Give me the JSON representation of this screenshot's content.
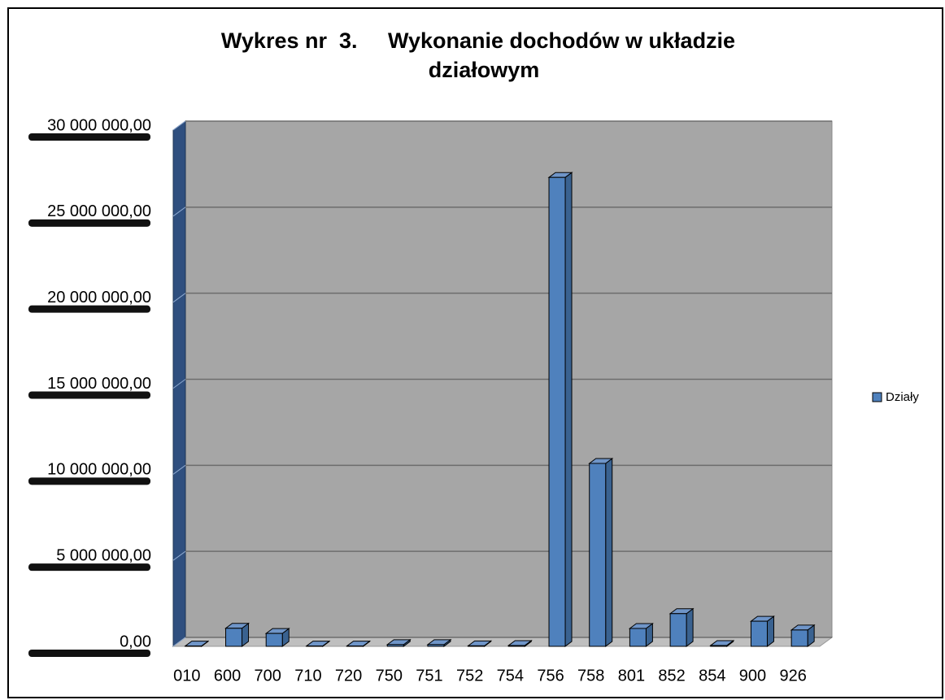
{
  "chart_data": {
    "type": "bar3d",
    "title": [
      "Wykres nr  3.     Wykonanie dochodów w układzie",
      "działowym"
    ],
    "categories": [
      "010",
      "600",
      "700",
      "710",
      "720",
      "750",
      "751",
      "752",
      "754",
      "756",
      "758",
      "801",
      "852",
      "854",
      "900",
      "926"
    ],
    "series": [
      {
        "name": "Działy",
        "color": "#4f81bd",
        "values": [
          20000,
          1050000,
          750000,
          20000,
          20000,
          100000,
          100000,
          30000,
          50000,
          27250000,
          10630000,
          1040000,
          1900000,
          50000,
          1460000,
          950000
        ]
      }
    ],
    "ylim": [
      0,
      30000000
    ],
    "yticks": [
      {
        "value": 0,
        "label": "0,00"
      },
      {
        "value": 5000000,
        "label": "5 000 000,00"
      },
      {
        "value": 10000000,
        "label": "10 000 000,00"
      },
      {
        "value": 15000000,
        "label": "15 000 000,00"
      },
      {
        "value": 20000000,
        "label": "20 000 000,00"
      },
      {
        "value": 25000000,
        "label": "25 000 000,00"
      },
      {
        "value": 30000000,
        "label": "30 000 000,00"
      }
    ],
    "grid": true,
    "legend": "right"
  }
}
